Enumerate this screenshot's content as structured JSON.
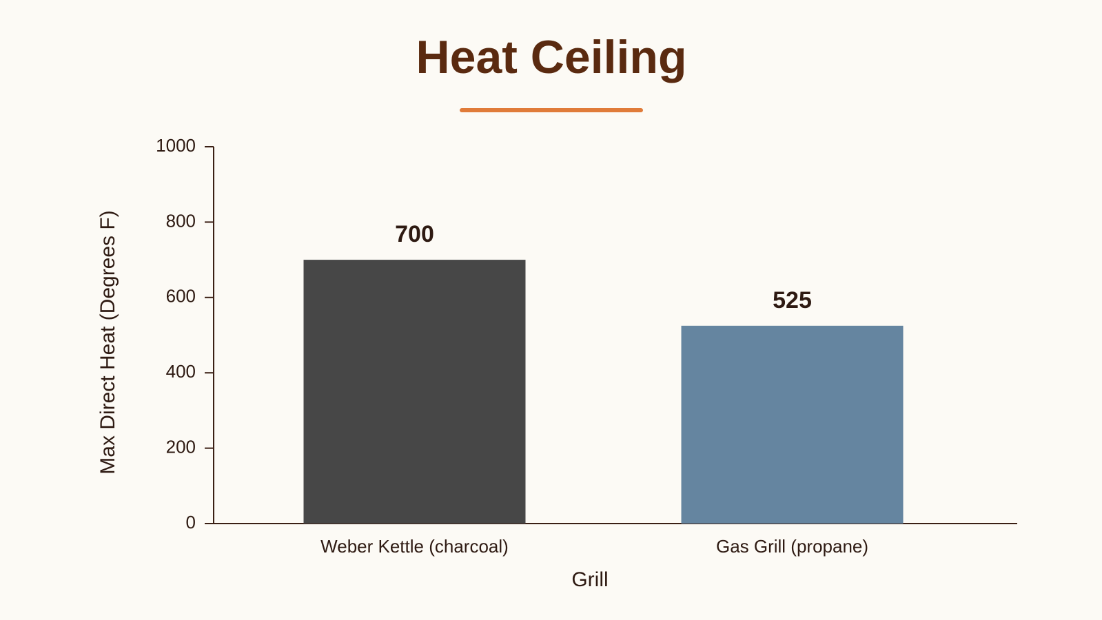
{
  "chart_data": {
    "type": "bar",
    "title": "Heat Ceiling",
    "x_label": "Grill",
    "y_label": "Max Direct Heat (Degrees F)",
    "categories": [
      "Weber Kettle (charcoal)",
      "Gas Grill (propane)"
    ],
    "values": [
      700,
      525
    ],
    "colors": [
      "#474747",
      "#6585a0"
    ],
    "ylim": [
      0,
      1000
    ],
    "yticks": [
      0,
      200,
      400,
      600,
      800,
      1000
    ],
    "grid": false
  }
}
